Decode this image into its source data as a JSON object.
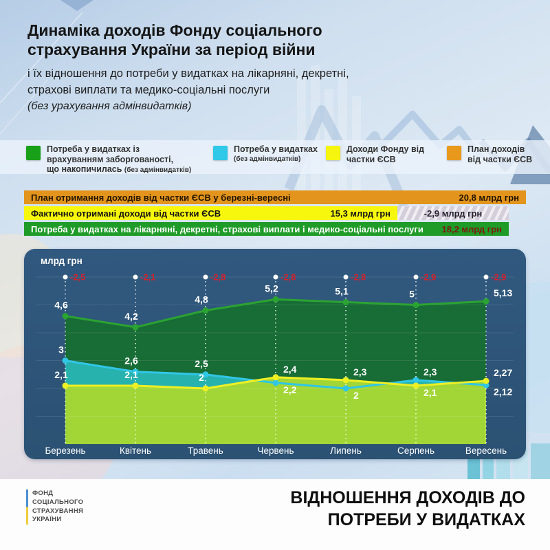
{
  "header": {
    "title_line1": "Динаміка доходів Фонду соціального",
    "title_line2": "страхування України за період війни",
    "subtitle_line1": "і їх відношення до потреби у видатках на лікарняні, декретні,",
    "subtitle_line2": "страхові виплати та медико-соціальні послуги",
    "note": "(без урахування адмінвидатків)"
  },
  "legend": {
    "items": [
      {
        "color": "#18a018",
        "line1": "Потреба у видатках із",
        "line2": "врахуванням заборгованості,",
        "line3": "що накопичилась",
        "small": "(без адмінвидатків)"
      },
      {
        "color": "#2fc8e8",
        "line1": "Потреба у видатках",
        "small": "(без адмінвидатків)"
      },
      {
        "color": "#f5f50f",
        "line1": "Доходи Фонду від",
        "line2": "частки ЄСВ"
      },
      {
        "color": "#e8991c",
        "line1": "План доходів",
        "line2": "від частки ЄСВ"
      }
    ]
  },
  "summary_bars": {
    "plan": {
      "label": "План отримання доходів від частки ЄСВ у березні-вересні",
      "value": "20,8 млрд грн",
      "color": "#e2941c"
    },
    "fact": {
      "label": "Фактично отримані доходи від частки ЄСВ",
      "value": "15,3 млрд грн",
      "gap_value": "-2,9 млрд грн",
      "color": "#f7f70e"
    },
    "need": {
      "label": "Потреба у видатках на лікарняні, декретні, страхові виплати і медико-соціальні послуги",
      "value": "18,2 млрд грн",
      "color": "#1f9b28"
    }
  },
  "chart_data": {
    "type": "area",
    "unit_label": "млрд грн",
    "categories": [
      "Березень",
      "Квітень",
      "Травень",
      "Червень",
      "Липень",
      "Серпень",
      "Вересень"
    ],
    "ylim": [
      0,
      6
    ],
    "grid": true,
    "panel_color": "#2d5478",
    "series": [
      {
        "name": "Потреба у видатках із врахуванням заборгованості, що накопичилась (без адмінвидатків)",
        "color": "#2ba332",
        "fill": "#186c36",
        "values": [
          4.6,
          4.2,
          4.8,
          5.2,
          5.1,
          5.0,
          5.13
        ],
        "labels": [
          "4,6",
          "4,2",
          "4,8",
          "5,2",
          "5,1",
          "5",
          "5,13"
        ],
        "label_sides": [
          "above",
          "above",
          "above",
          "above",
          "above",
          "above",
          "right-above"
        ]
      },
      {
        "name": "Потреба у видатках (без адмінвидатків)",
        "color": "#30c6e6",
        "fill": "#28b2ae",
        "values": [
          3.0,
          2.6,
          2.5,
          2.2,
          2.0,
          2.3,
          2.12
        ],
        "labels": [
          "3",
          "2,6",
          "2,5",
          "2,2",
          "2",
          "2,3",
          "2,12"
        ],
        "label_sides": [
          "above",
          "above",
          "above",
          "right-below",
          "right-below",
          "right-above",
          "right-below"
        ]
      },
      {
        "name": "Доходи Фонду від частки ЄСВ",
        "color": "#eef024",
        "fill": "#a2d636",
        "values": [
          2.1,
          2.1,
          2.0,
          2.4,
          2.3,
          2.1,
          2.27
        ],
        "labels": [
          "2,1",
          "2,1",
          "2",
          "2,4",
          "2,3",
          "2,1",
          "2,27"
        ],
        "label_sides": [
          "above",
          "above",
          "above",
          "right-above",
          "right-above",
          "right-below",
          "right-above"
        ]
      }
    ],
    "deficit_labels": [
      "-2,5",
      "-2,1",
      "-2,8",
      "-2,8",
      "-2,8",
      "-2,9",
      "-2,9"
    ],
    "deficit_color": "#d2232e"
  },
  "footer": {
    "org_line1": "ФОНД",
    "org_line2": "СОЦІАЛЬНОГО",
    "org_line3": "СТРАХУВАННЯ",
    "org_line4": "УКРАЇНИ",
    "heading_line1": "ВІДНОШЕННЯ ДОХОДІВ ДО",
    "heading_line2": "ПОТРЕБИ У ВИДАТКАХ"
  }
}
